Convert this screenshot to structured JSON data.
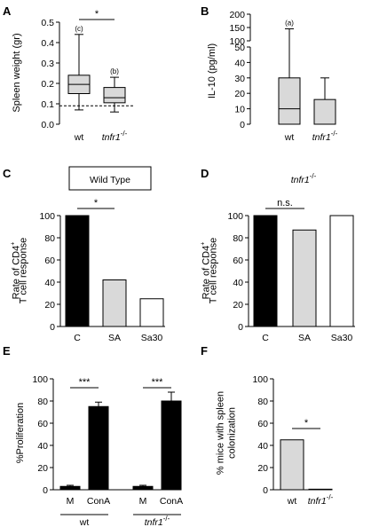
{
  "colors": {
    "black": "#000000",
    "gray": "#d9d9d9",
    "white": "#ffffff"
  },
  "chart_data": [
    {
      "panel": "A",
      "type": "box",
      "ylabel": "Spleen weight (gr)",
      "ylim": [
        0,
        0.5
      ],
      "yticks": [
        "0.0",
        "0.1",
        "0.2",
        "0.3",
        "0.4",
        "0.5"
      ],
      "categories": [
        "wt",
        "tnfr1-/-"
      ],
      "category_labels": [
        {
          "text": "wt",
          "sup": ""
        },
        {
          "text": "tnfr1",
          "sup": "-/-"
        }
      ],
      "boxes": [
        {
          "min": 0.07,
          "q1": 0.15,
          "median": 0.195,
          "q3": 0.24,
          "max": 0.44,
          "fill": "#d9d9d9",
          "label": "(c)"
        },
        {
          "min": 0.06,
          "q1": 0.105,
          "median": 0.13,
          "q3": 0.18,
          "max": 0.23,
          "fill": "#d9d9d9",
          "label": "(b)"
        }
      ],
      "reference_line": 0.09,
      "significance": [
        {
          "from": 0,
          "to": 1,
          "text": "*"
        }
      ]
    },
    {
      "panel": "B",
      "type": "box",
      "ylabel": "IL-10  (pg/ml)",
      "yticks_lower": [
        "0",
        "10",
        "20",
        "30",
        "40",
        "50"
      ],
      "yticks_upper": [
        "100",
        "150",
        "200"
      ],
      "categories": [
        "wt",
        "tnfr1-/-"
      ],
      "category_labels": [
        {
          "text": "wt",
          "sup": ""
        },
        {
          "text": "tnfr1",
          "sup": "-/-"
        }
      ],
      "boxes": [
        {
          "min": 0,
          "q1": 0,
          "median": 10,
          "q3": 30,
          "max": 145,
          "fill": "#d9d9d9",
          "label": "(a)"
        },
        {
          "min": 0,
          "q1": 0,
          "median": 0,
          "q3": 16,
          "max": 30,
          "fill": "#d9d9d9",
          "label": ""
        }
      ]
    },
    {
      "panel": "C",
      "type": "bar",
      "header": "Wild Type",
      "ylabel": [
        "Rate of CD4",
        "T cell response"
      ],
      "ylabel_sup": "+",
      "ylim": [
        0,
        100
      ],
      "yticks": [
        "0",
        "20",
        "40",
        "60",
        "80",
        "100"
      ],
      "categories": [
        "C",
        "SA",
        "Sa30"
      ],
      "values": [
        100,
        42,
        25
      ],
      "fills": [
        "#000000",
        "#d9d9d9",
        "#ffffff"
      ],
      "significance": [
        {
          "from": 0,
          "to": 1,
          "text": "*"
        }
      ]
    },
    {
      "panel": "D",
      "type": "bar",
      "header": "tnfr1",
      "header_sup": "-/-",
      "ylabel": [
        "Rate of CD4",
        "T cell response"
      ],
      "ylabel_sup": "+",
      "ylim": [
        0,
        100
      ],
      "yticks": [
        "0",
        "20",
        "40",
        "60",
        "80",
        "100"
      ],
      "categories": [
        "C",
        "SA",
        "Sa30"
      ],
      "values": [
        100,
        87,
        100
      ],
      "fills": [
        "#000000",
        "#d9d9d9",
        "#ffffff"
      ],
      "significance": [
        {
          "from": 0,
          "to": 1,
          "text": "n.s."
        }
      ]
    },
    {
      "panel": "E",
      "type": "bar",
      "ylabel": "%Proliferation",
      "ylim": [
        0,
        100
      ],
      "yticks": [
        "0",
        "20",
        "40",
        "60",
        "80",
        "100"
      ],
      "categories": [
        "M",
        "ConA",
        "M",
        "ConA"
      ],
      "groups": [
        {
          "text": "wt",
          "sup": ""
        },
        {
          "text": "tnfr1",
          "sup": "-/-"
        }
      ],
      "values": [
        3,
        75,
        3,
        80
      ],
      "errors": [
        1,
        4,
        1,
        8
      ],
      "fills": [
        "#000000",
        "#000000",
        "#000000",
        "#000000"
      ],
      "significance": [
        {
          "from": 0,
          "to": 1,
          "text": "***"
        },
        {
          "from": 2,
          "to": 3,
          "text": "***"
        }
      ]
    },
    {
      "panel": "F",
      "type": "bar",
      "ylabel": [
        "% mice with spleen",
        "colonization"
      ],
      "ylim": [
        0,
        100
      ],
      "yticks": [
        "0",
        "20",
        "40",
        "60",
        "80",
        "100"
      ],
      "categories": [
        "wt",
        "tnfr1-/-"
      ],
      "category_labels": [
        {
          "text": "wt",
          "sup": ""
        },
        {
          "text": "tnfr1",
          "sup": "-/-"
        }
      ],
      "values": [
        45,
        0.5
      ],
      "fills": [
        "#d9d9d9",
        "#d9d9d9"
      ],
      "significance": [
        {
          "from": 0,
          "to": 1,
          "text": "*"
        }
      ]
    }
  ]
}
